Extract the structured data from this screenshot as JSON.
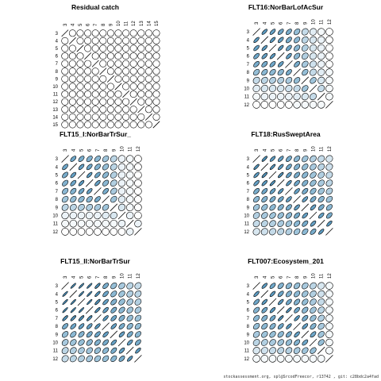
{
  "chart_data": [
    {
      "type": "heatmap",
      "title": "Residual catch",
      "labels": [
        "3",
        "4",
        "5",
        "6",
        "7",
        "8",
        "9",
        "10",
        "11",
        "12",
        "13",
        "14",
        "15"
      ],
      "values": [
        [
          1,
          0,
          0,
          0,
          0,
          0,
          0,
          0,
          0,
          0,
          0,
          0,
          0
        ],
        [
          0,
          1,
          0,
          0,
          0,
          0,
          0,
          0,
          0,
          0,
          0,
          0,
          0
        ],
        [
          0,
          0,
          1,
          0,
          0,
          0,
          0,
          0,
          0,
          0,
          0,
          0,
          0
        ],
        [
          0,
          0,
          0,
          1,
          0,
          0,
          0,
          0,
          0,
          0,
          0,
          0,
          0
        ],
        [
          0,
          0,
          0,
          0,
          1,
          0,
          0,
          0,
          0,
          0,
          0,
          0,
          0
        ],
        [
          0,
          0,
          0,
          0,
          0,
          1,
          0,
          0,
          0,
          0,
          0,
          0,
          0
        ],
        [
          0,
          0,
          0,
          0,
          0,
          0,
          1,
          0,
          0,
          0,
          0,
          0,
          0
        ],
        [
          0,
          0,
          0,
          0,
          0,
          0,
          0,
          1,
          0,
          0,
          0,
          0,
          0
        ],
        [
          0,
          0,
          0,
          0,
          0,
          0,
          0,
          0,
          1,
          0,
          0,
          0,
          0
        ],
        [
          0,
          0,
          0,
          0,
          0,
          0,
          0,
          0,
          0,
          1,
          0,
          0,
          0
        ],
        [
          0,
          0,
          0,
          0,
          0,
          0,
          0,
          0,
          0,
          0,
          1,
          0,
          0
        ],
        [
          0,
          0,
          0,
          0,
          0,
          0,
          0,
          0,
          0,
          0,
          0,
          1,
          0
        ],
        [
          0,
          0,
          0,
          0,
          0,
          0,
          0,
          0,
          0,
          0,
          0,
          0,
          1
        ]
      ]
    },
    {
      "type": "heatmap",
      "title": "FLT16:NorBarLofAcSur",
      "labels": [
        "3",
        "4",
        "5",
        "6",
        "7",
        "8",
        "9",
        "10",
        "11",
        "12"
      ],
      "values": [
        [
          1,
          0.85,
          0.8,
          0.75,
          0.7,
          0.55,
          0.3,
          0.15,
          0.05,
          0
        ],
        [
          0.85,
          1,
          0.85,
          0.8,
          0.7,
          0.6,
          0.35,
          0.2,
          0.1,
          0
        ],
        [
          0.8,
          0.85,
          1,
          0.85,
          0.75,
          0.6,
          0.4,
          0.2,
          0.1,
          0
        ],
        [
          0.75,
          0.8,
          0.85,
          1,
          0.8,
          0.6,
          0.4,
          0.2,
          0.1,
          0
        ],
        [
          0.7,
          0.7,
          0.75,
          0.8,
          1,
          0.7,
          0.45,
          0.25,
          0.1,
          0
        ],
        [
          0.55,
          0.6,
          0.6,
          0.6,
          0.7,
          1,
          0.55,
          0.3,
          0.15,
          0.05
        ],
        [
          0.3,
          0.35,
          0.4,
          0.4,
          0.45,
          0.55,
          1,
          0.5,
          0.2,
          0.05
        ],
        [
          0.15,
          0.2,
          0.2,
          0.2,
          0.25,
          0.3,
          0.5,
          1,
          0.3,
          0.05
        ],
        [
          0.05,
          0.1,
          0.1,
          0.1,
          0.1,
          0.15,
          0.2,
          0.3,
          1,
          0.05
        ],
        [
          0,
          0,
          0,
          0,
          0,
          0.05,
          0.05,
          0.05,
          0.05,
          1
        ]
      ]
    },
    {
      "type": "heatmap",
      "title": "FLT15_I:NorBarTrSur_",
      "labels": [
        "3",
        "4",
        "5",
        "6",
        "7",
        "8",
        "9",
        "10",
        "11",
        "12"
      ],
      "values": [
        [
          1,
          0.75,
          0.7,
          0.65,
          0.6,
          0.5,
          0.35,
          0.1,
          0.05,
          0
        ],
        [
          0.75,
          1,
          0.8,
          0.75,
          0.65,
          0.55,
          0.35,
          0.1,
          0.05,
          0
        ],
        [
          0.7,
          0.8,
          1,
          0.85,
          0.75,
          0.6,
          0.4,
          0.1,
          0.05,
          0
        ],
        [
          0.65,
          0.75,
          0.85,
          1,
          0.8,
          0.6,
          0.4,
          0.1,
          0.05,
          0
        ],
        [
          0.6,
          0.65,
          0.75,
          0.8,
          1,
          0.7,
          0.45,
          0.1,
          0.05,
          0
        ],
        [
          0.5,
          0.55,
          0.6,
          0.6,
          0.7,
          1,
          0.5,
          0.15,
          0.05,
          0
        ],
        [
          0.35,
          0.35,
          0.4,
          0.4,
          0.45,
          0.5,
          1,
          0.2,
          0.05,
          0
        ],
        [
          0.1,
          0.1,
          0.1,
          0.1,
          0.1,
          0.15,
          0.2,
          1,
          0.1,
          0
        ],
        [
          0.05,
          0.05,
          0.05,
          0.05,
          0.05,
          0.05,
          0.05,
          0.1,
          1,
          0.1
        ],
        [
          0,
          0,
          0,
          0,
          0,
          0,
          0,
          0,
          0.1,
          1
        ]
      ]
    },
    {
      "type": "heatmap",
      "title": "FLT18:RusSweptArea",
      "labels": [
        "3",
        "4",
        "5",
        "6",
        "7",
        "8",
        "9",
        "10",
        "11",
        "12"
      ],
      "values": [
        [
          1,
          0.9,
          0.85,
          0.8,
          0.7,
          0.6,
          0.5,
          0.4,
          0.3,
          0.2
        ],
        [
          0.9,
          1,
          0.9,
          0.85,
          0.75,
          0.65,
          0.55,
          0.45,
          0.35,
          0.25
        ],
        [
          0.85,
          0.9,
          1,
          0.9,
          0.8,
          0.7,
          0.6,
          0.5,
          0.4,
          0.3
        ],
        [
          0.8,
          0.85,
          0.9,
          1,
          0.85,
          0.75,
          0.65,
          0.55,
          0.45,
          0.35
        ],
        [
          0.7,
          0.75,
          0.8,
          0.85,
          1,
          0.8,
          0.7,
          0.6,
          0.5,
          0.4
        ],
        [
          0.6,
          0.65,
          0.7,
          0.75,
          0.8,
          1,
          0.8,
          0.7,
          0.6,
          0.5
        ],
        [
          0.5,
          0.55,
          0.6,
          0.65,
          0.7,
          0.8,
          1,
          0.8,
          0.7,
          0.6
        ],
        [
          0.4,
          0.45,
          0.5,
          0.55,
          0.6,
          0.7,
          0.8,
          1,
          0.8,
          0.7
        ],
        [
          0.3,
          0.35,
          0.4,
          0.45,
          0.5,
          0.6,
          0.7,
          0.8,
          1,
          0.85
        ],
        [
          0.2,
          0.25,
          0.3,
          0.35,
          0.4,
          0.5,
          0.6,
          0.7,
          0.85,
          1
        ]
      ]
    },
    {
      "type": "heatmap",
      "title": "FLT15_II:NorBarTrSur",
      "labels": [
        "3",
        "4",
        "5",
        "6",
        "7",
        "8",
        "9",
        "10",
        "11",
        "12"
      ],
      "values": [
        [
          1,
          0.95,
          0.95,
          0.95,
          0.9,
          0.7,
          0.55,
          0.45,
          0.35,
          0.3
        ],
        [
          0.95,
          1,
          0.95,
          0.95,
          0.9,
          0.75,
          0.6,
          0.5,
          0.4,
          0.35
        ],
        [
          0.95,
          0.95,
          1,
          0.95,
          0.9,
          0.8,
          0.65,
          0.55,
          0.45,
          0.4
        ],
        [
          0.95,
          0.95,
          0.95,
          1,
          0.9,
          0.8,
          0.7,
          0.6,
          0.5,
          0.45
        ],
        [
          0.9,
          0.9,
          0.9,
          0.9,
          1,
          0.85,
          0.75,
          0.65,
          0.55,
          0.5
        ],
        [
          0.7,
          0.75,
          0.8,
          0.8,
          0.85,
          1,
          0.8,
          0.7,
          0.6,
          0.55
        ],
        [
          0.55,
          0.6,
          0.65,
          0.7,
          0.75,
          0.8,
          1,
          0.8,
          0.7,
          0.6
        ],
        [
          0.45,
          0.5,
          0.55,
          0.6,
          0.65,
          0.7,
          0.8,
          1,
          0.8,
          0.7
        ],
        [
          0.35,
          0.4,
          0.45,
          0.5,
          0.55,
          0.6,
          0.7,
          0.8,
          1,
          0.85
        ],
        [
          0.3,
          0.35,
          0.4,
          0.45,
          0.5,
          0.55,
          0.6,
          0.7,
          0.85,
          1
        ]
      ]
    },
    {
      "type": "heatmap",
      "title": "FLT007:Ecosystem_201",
      "labels": [
        "3",
        "4",
        "5",
        "6",
        "7",
        "8",
        "9",
        "10",
        "11",
        "12"
      ],
      "values": [
        [
          1,
          0.85,
          0.75,
          0.65,
          0.6,
          0.55,
          0.45,
          0.35,
          0.2,
          0.05
        ],
        [
          0.85,
          1,
          0.85,
          0.75,
          0.65,
          0.6,
          0.5,
          0.4,
          0.25,
          0.05
        ],
        [
          0.75,
          0.85,
          1,
          0.85,
          0.75,
          0.65,
          0.55,
          0.45,
          0.3,
          0.05
        ],
        [
          0.65,
          0.75,
          0.85,
          1,
          0.9,
          0.75,
          0.6,
          0.5,
          0.35,
          0.05
        ],
        [
          0.6,
          0.65,
          0.75,
          0.9,
          1,
          0.85,
          0.7,
          0.55,
          0.4,
          0.05
        ],
        [
          0.55,
          0.6,
          0.65,
          0.75,
          0.85,
          1,
          0.8,
          0.65,
          0.45,
          0.05
        ],
        [
          0.45,
          0.5,
          0.55,
          0.6,
          0.7,
          0.8,
          1,
          0.75,
          0.5,
          0.05
        ],
        [
          0.35,
          0.4,
          0.45,
          0.5,
          0.55,
          0.65,
          0.75,
          1,
          0.55,
          0.05
        ],
        [
          0.2,
          0.25,
          0.3,
          0.35,
          0.4,
          0.45,
          0.5,
          0.55,
          1,
          0.05
        ],
        [
          0.05,
          0.05,
          0.05,
          0.05,
          0.05,
          0.05,
          0.05,
          0.05,
          0.05,
          1
        ]
      ]
    }
  ],
  "colors": {
    "low": "#ffffff",
    "high": "#3e88b5",
    "stroke": "#000000"
  },
  "footer": "stockassessment.org, spl@SrcodFreecor, r13742 , git: c28bdc2a4fad"
}
